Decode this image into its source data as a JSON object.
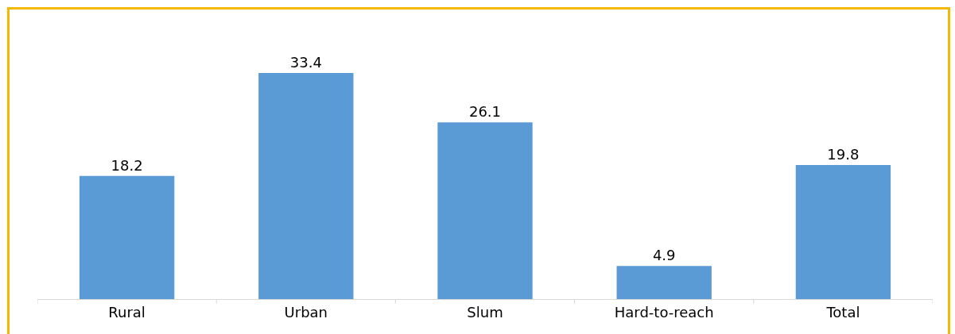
{
  "chart_data": {
    "type": "bar",
    "categories": [
      "Rural",
      "Urban",
      "Slum",
      "Hard-to-reach",
      "Total"
    ],
    "values": [
      18.2,
      33.4,
      26.1,
      4.9,
      19.8
    ],
    "color": "#5b9bd5",
    "data_labels": true,
    "grid": false,
    "legend": false
  }
}
